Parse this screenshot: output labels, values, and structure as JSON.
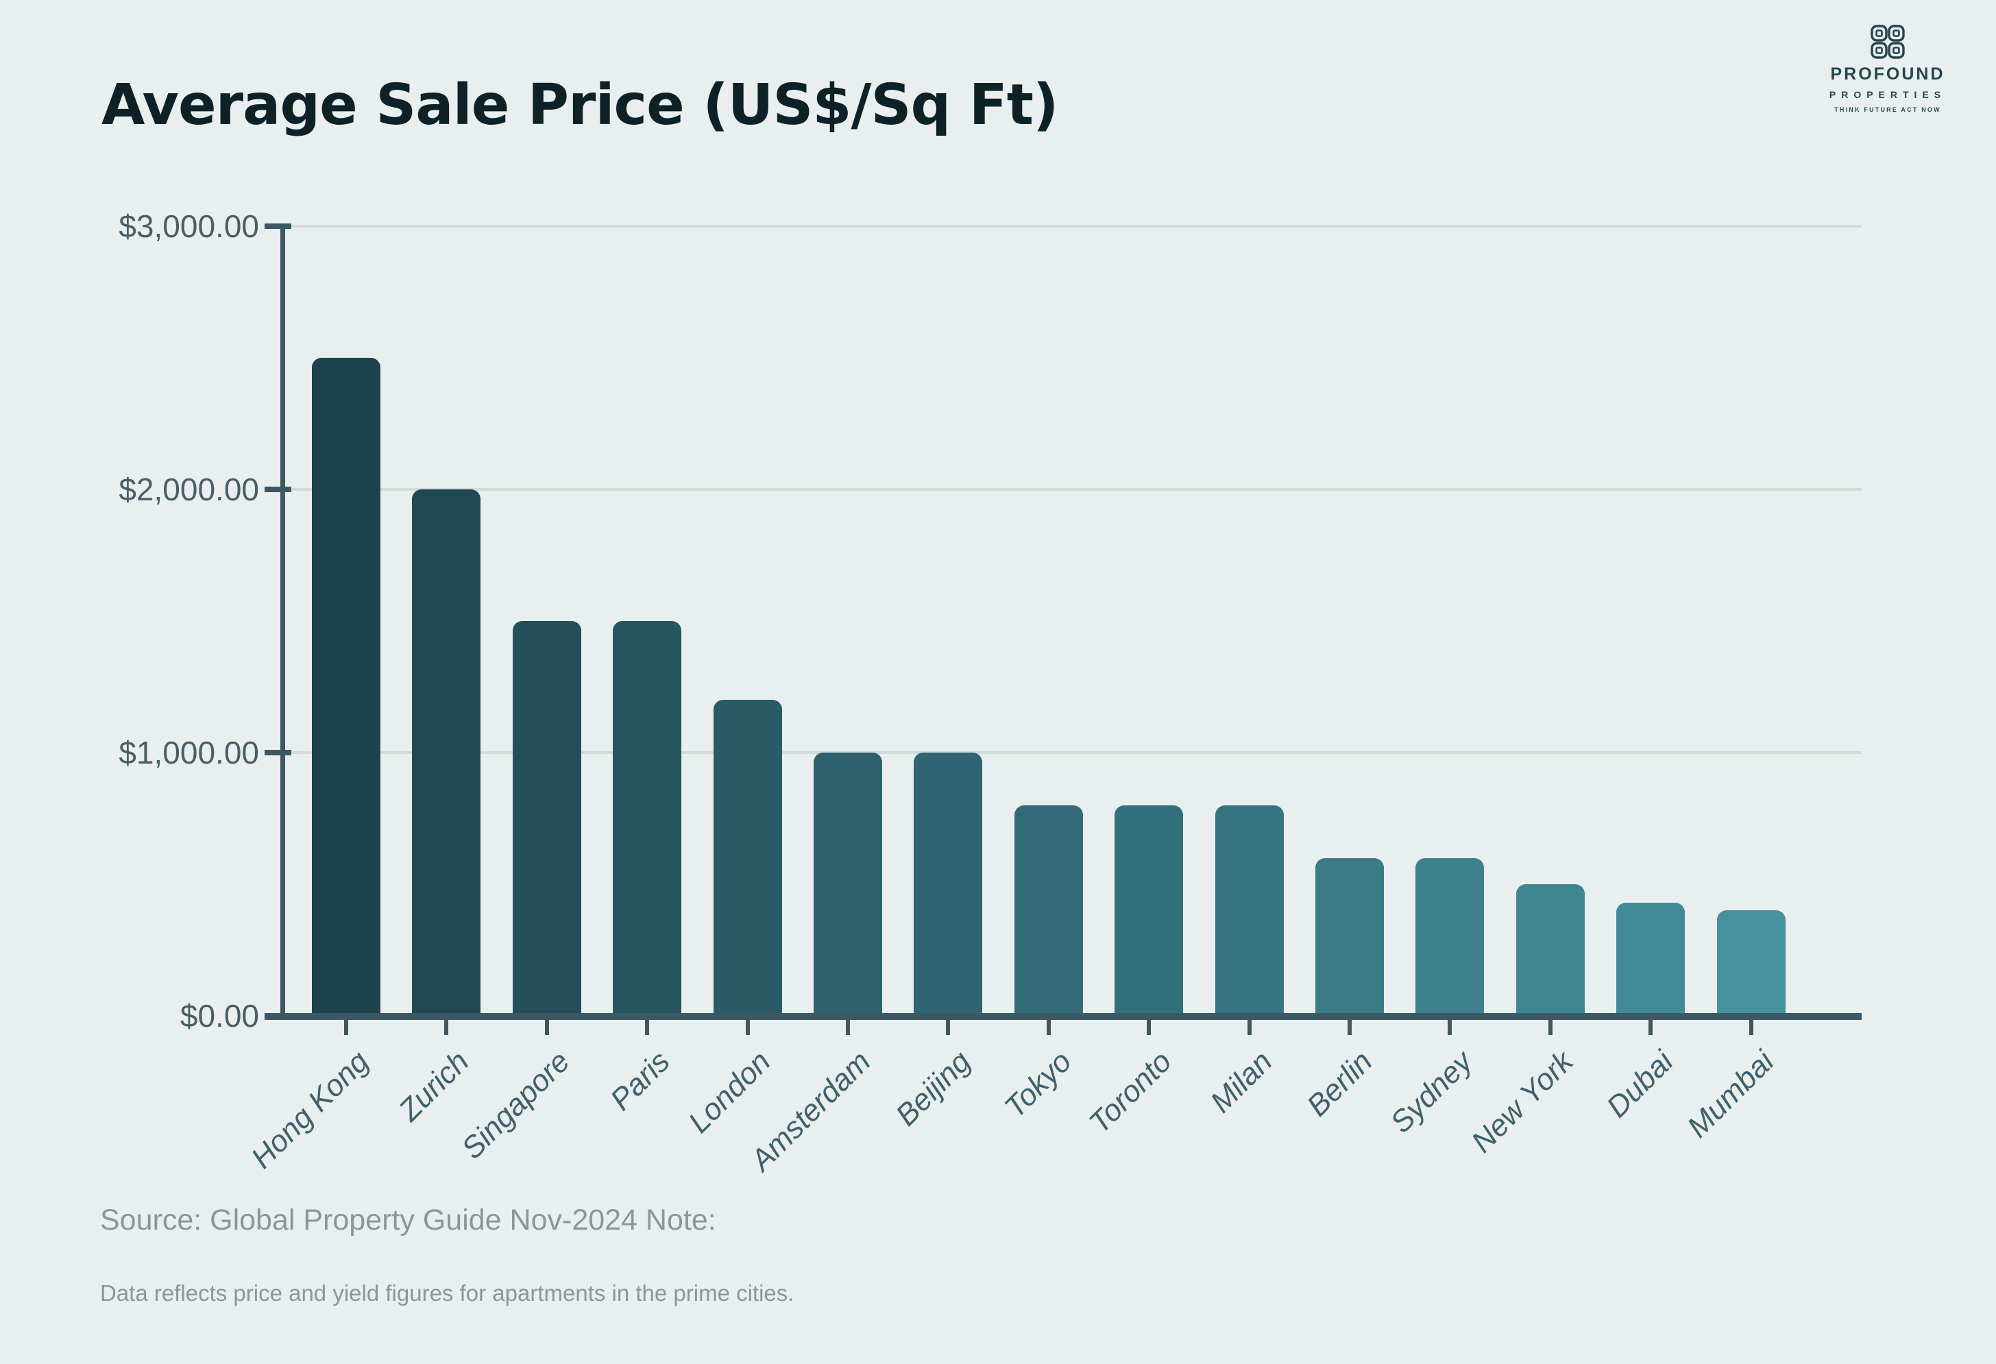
{
  "title": "Average Sale Price (US$/Sq Ft)",
  "logo": {
    "name": "PROFOUND",
    "properties": "PROPERTIES",
    "tagline": "THINK FUTURE ACT NOW"
  },
  "footer": {
    "source": "Source: Global Property Guide Nov-2024 Note:",
    "note": "Data reflects price and yield figures for apartments in the prime cities."
  },
  "colors": {
    "background": "#e9efee",
    "title_text": "#0e2127",
    "axis": "#3d5862",
    "gridline": "#d2dada",
    "y_tick_label": "#4a5e66",
    "category_label": "#40606b",
    "footer_text": "#8c9698",
    "logo": "#24454d",
    "bar_darkest": "#1d434e",
    "bar_lightest": "#45919c"
  },
  "chart_data": {
    "type": "bar",
    "title": "Average Sale Price (US$/Sq Ft)",
    "categories": [
      "Hong Kong",
      "Zurich",
      "Singapore",
      "Paris",
      "London",
      "Amsterdam",
      "Beijing",
      "Tokyo",
      "Toronto",
      "Milan",
      "Berlin",
      "Sydney",
      "New York",
      "Dubai",
      "Mumbai"
    ],
    "values": [
      2500,
      2000,
      1500,
      1500,
      1200,
      1000,
      1000,
      800,
      800,
      800,
      600,
      600,
      500,
      430,
      400
    ],
    "bar_colors": [
      "#1d434e",
      "#1f4853",
      "#234f5b",
      "#265560",
      "#2a5b67",
      "#2d616d",
      "#2f6472",
      "#326b77",
      "#34707c",
      "#377481",
      "#3a7b86",
      "#3d818c",
      "#3f8691",
      "#428b96",
      "#45919c"
    ],
    "xlabel": "",
    "ylabel": "",
    "ylim": [
      0,
      3000
    ],
    "yticks": [
      {
        "label": "$0.00",
        "value": 0
      },
      {
        "label": "$1,000.00",
        "value": 1000
      },
      {
        "label": "$2,000.00",
        "value": 2000
      },
      {
        "label": "$3,000.00",
        "value": 3000
      }
    ],
    "grid": "horizontal, behind bars",
    "legend": "none",
    "bar_style": "rounded-top corners, dark-to-light teal gradient across categories",
    "category_label_style": "rotated 45 degrees, italic"
  }
}
